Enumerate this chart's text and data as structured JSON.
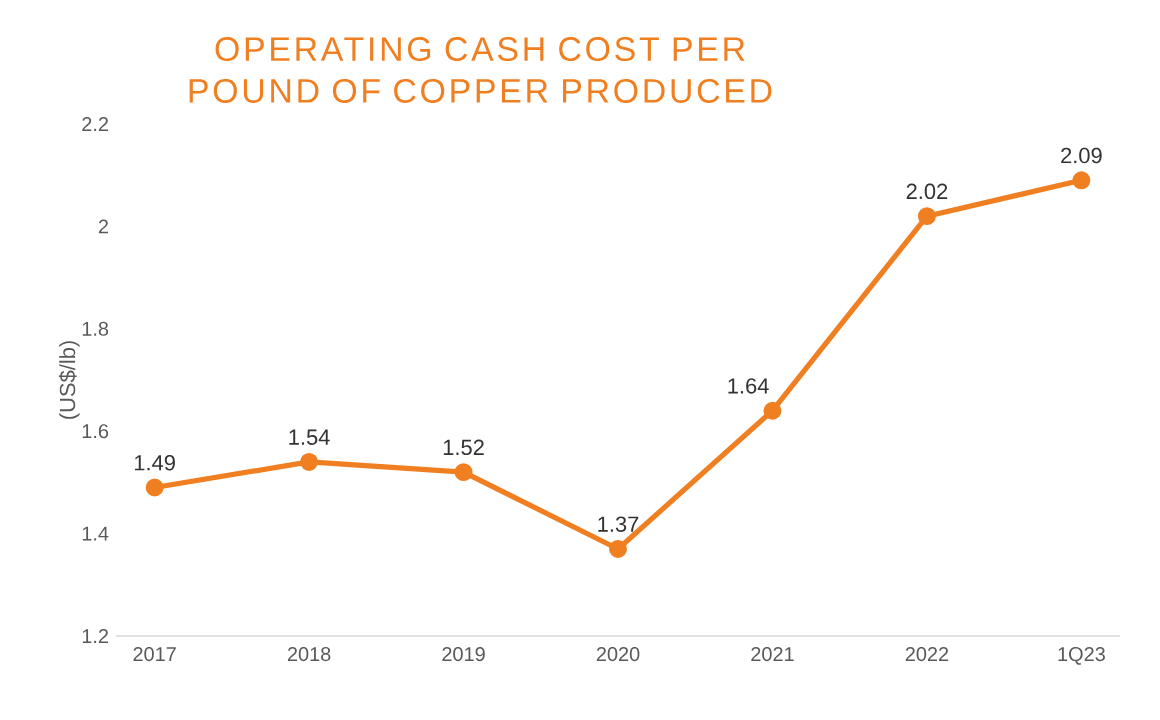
{
  "chart_data": {
    "type": "line",
    "title": "OPERATING CASH COST PER POUND OF COPPER PRODUCED",
    "ylabel": "(US$/lb)",
    "categories": [
      "2017",
      "2018",
      "2019",
      "2020",
      "2021",
      "2022",
      "1Q23"
    ],
    "series": [
      {
        "color": "#f07f22",
        "values": [
          1.49,
          1.54,
          1.52,
          1.37,
          1.64,
          2.02,
          2.09
        ]
      }
    ],
    "ylim": [
      1.2,
      2.2
    ],
    "yticks": [
      1.2,
      1.4,
      1.6,
      1.8,
      2,
      2.2
    ],
    "data_labels": true,
    "marker": "circle",
    "line_style": "solid"
  }
}
